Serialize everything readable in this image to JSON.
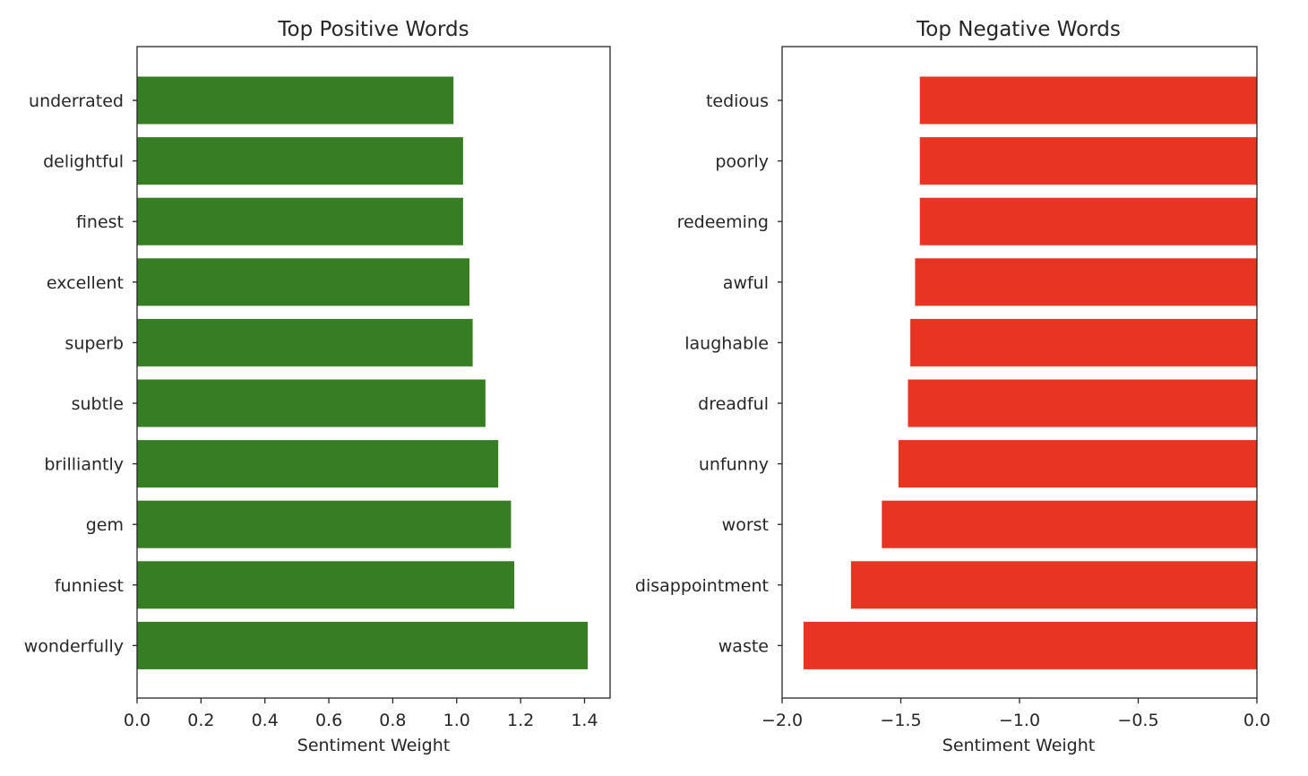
{
  "chart_data": [
    {
      "type": "bar",
      "orientation": "horizontal",
      "title": "Top Positive Words",
      "xlabel": "Sentiment Weight",
      "ylabel": "",
      "categories": [
        "underrated",
        "delightful",
        "finest",
        "excellent",
        "superb",
        "subtle",
        "brilliantly",
        "gem",
        "funniest",
        "wonderfully"
      ],
      "values": [
        0.99,
        1.02,
        1.02,
        1.04,
        1.05,
        1.09,
        1.13,
        1.17,
        1.18,
        1.41
      ],
      "xlim": [
        0.0,
        1.48
      ],
      "xticks": [
        0.0,
        0.2,
        0.4,
        0.6,
        0.8,
        1.0,
        1.2,
        1.4
      ],
      "xtick_labels": [
        "0.0",
        "0.2",
        "0.4",
        "0.6",
        "0.8",
        "1.0",
        "1.2",
        "1.4"
      ],
      "color": "#367d23",
      "grid": false,
      "legend": "none"
    },
    {
      "type": "bar",
      "orientation": "horizontal",
      "title": "Top Negative Words",
      "xlabel": "Sentiment Weight",
      "ylabel": "",
      "categories": [
        "tedious",
        "poorly",
        "redeeming",
        "awful",
        "laughable",
        "dreadful",
        "unfunny",
        "worst",
        "disappointment",
        "waste"
      ],
      "values": [
        -1.42,
        -1.42,
        -1.42,
        -1.44,
        -1.46,
        -1.47,
        -1.51,
        -1.58,
        -1.71,
        -1.91
      ],
      "xlim": [
        -2.0,
        0.0
      ],
      "xticks": [
        -2.0,
        -1.5,
        -1.0,
        -0.5,
        0.0
      ],
      "xtick_labels": [
        "−2.0",
        "−1.5",
        "−1.0",
        "−0.5",
        "0.0"
      ],
      "color": "#e73423",
      "grid": false,
      "legend": "none"
    }
  ]
}
